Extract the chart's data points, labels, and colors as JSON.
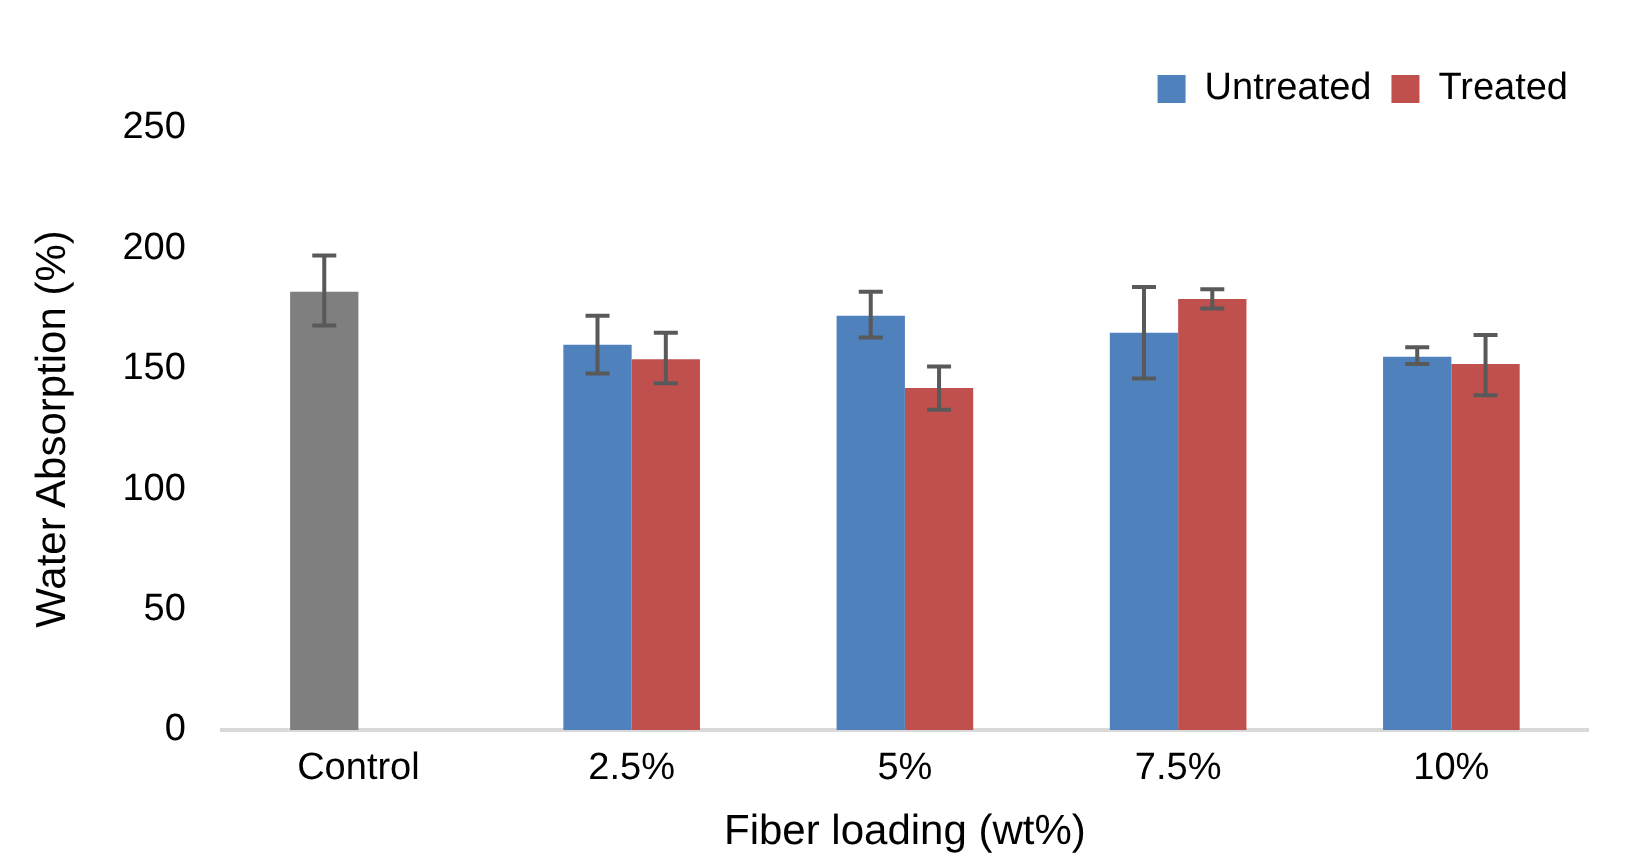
{
  "chart_data": {
    "type": "bar",
    "xlabel": "Fiber loading (wt%)",
    "ylabel": "Water Absorption (%)",
    "categories": [
      "Control",
      "2.5%",
      "5%",
      "7.5%",
      "10%"
    ],
    "series": [
      {
        "name": "Untreated",
        "color": "#4f81bd",
        "colors": [
          "#7f7f7f",
          "#4f81bd",
          "#4f81bd",
          "#4f81bd",
          "#4f81bd"
        ],
        "values": [
          182,
          160,
          172,
          165,
          155
        ],
        "errors": [
          [
            168,
            197
          ],
          [
            148,
            172
          ],
          [
            163,
            182
          ],
          [
            146,
            184
          ],
          [
            152,
            159
          ]
        ]
      },
      {
        "name": "Treated",
        "color": "#c0504d",
        "values": [
          null,
          154,
          142,
          179,
          152
        ],
        "errors": [
          null,
          [
            144,
            165
          ],
          [
            133,
            151
          ],
          [
            175,
            183
          ],
          [
            139,
            164
          ]
        ]
      }
    ],
    "ylim": [
      0,
      250
    ],
    "yticks": [
      0,
      50,
      100,
      150,
      200,
      250
    ],
    "grid": false,
    "legend": "top right"
  }
}
